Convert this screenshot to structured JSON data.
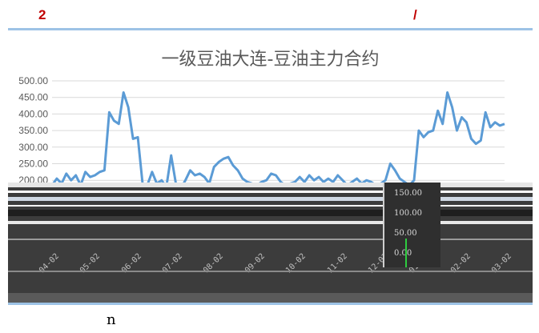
{
  "header": {
    "num": "2",
    "slash": "/"
  },
  "footer": {
    "text": "n"
  },
  "chart_data": {
    "type": "line",
    "title": "一级豆油大连-豆油主力合约",
    "xlabel": "",
    "ylabel": "",
    "ylim": [
      0,
      500
    ],
    "y_ticks": [
      "500.00",
      "450.00",
      "400.00",
      "350.00",
      "300.00",
      "250.00",
      "200.00"
    ],
    "x_ticks": [
      "04-02",
      "05-02",
      "06-02",
      "07-02",
      "08-02",
      "09-02",
      "10-02",
      "11-02",
      "12-02",
      "01-02",
      "02-02",
      "03-02"
    ],
    "inset_ticks": [
      "150.00",
      "100.00",
      "50.00",
      "0.00"
    ],
    "grid": true,
    "legend": "none",
    "series": [
      {
        "color": "#5b9bd5",
        "values": [
          185,
          205,
          190,
          220,
          200,
          215,
          185,
          225,
          210,
          215,
          225,
          230,
          405,
          380,
          370,
          465,
          420,
          325,
          330,
          190,
          185,
          225,
          190,
          200,
          180,
          275,
          190,
          175,
          200,
          230,
          215,
          220,
          210,
          190,
          240,
          255,
          265,
          270,
          245,
          230,
          205,
          195,
          190,
          185,
          195,
          200,
          220,
          215,
          195,
          185,
          190,
          195,
          210,
          195,
          215,
          200,
          210,
          195,
          205,
          195,
          215,
          200,
          185,
          195,
          205,
          190,
          200,
          195,
          185,
          190,
          200,
          250,
          230,
          205,
          195,
          185,
          200,
          350,
          330,
          345,
          350,
          410,
          370,
          465,
          420,
          350,
          390,
          375,
          325,
          310,
          320,
          405,
          360,
          375,
          365,
          370
        ]
      }
    ]
  }
}
